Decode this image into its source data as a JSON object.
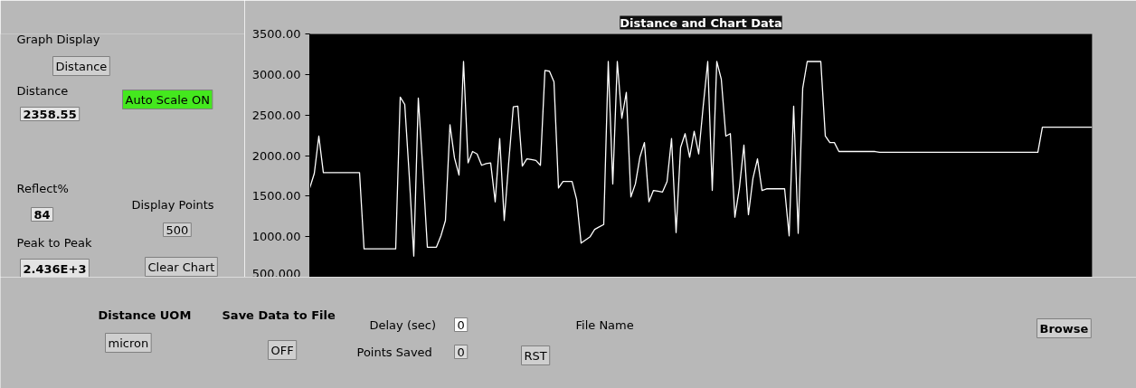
{
  "chart_data": {
    "type": "line",
    "title": "Distance and Chart Data",
    "categories": [
      null,
      null,
      null,
      null,
      null,
      null,
      null,
      null,
      null,
      null,
      null,
      null,
      null,
      null,
      null,
      null,
      null,
      null,
      null,
      null,
      null,
      null,
      null,
      null,
      null,
      null,
      null,
      null,
      null,
      null,
      null,
      null,
      null,
      null,
      null,
      null,
      null,
      null,
      null,
      null,
      null,
      null,
      null,
      null,
      null,
      null,
      null,
      null,
      null,
      null,
      null,
      null,
      null,
      null,
      null,
      null,
      null,
      null,
      null,
      null,
      null,
      null,
      null,
      null,
      null,
      null,
      null,
      null,
      null,
      null,
      null,
      null,
      null,
      null,
      null,
      null,
      null,
      null,
      null,
      null,
      null,
      null,
      null,
      null,
      null,
      null,
      null,
      null,
      null,
      null,
      null,
      null,
      null,
      null,
      null,
      null,
      null,
      null,
      null,
      null,
      null,
      null,
      null,
      null,
      null,
      null,
      null,
      null,
      null,
      null,
      null,
      null,
      null,
      null,
      null,
      null,
      null,
      null,
      null,
      null,
      null,
      null,
      null,
      null,
      null,
      null,
      null,
      null,
      null,
      null,
      null,
      null,
      null,
      null,
      null,
      null,
      null,
      null,
      null,
      null,
      null,
      null,
      null,
      null,
      null,
      null,
      null,
      null,
      null,
      null,
      null,
      null,
      null,
      null,
      null,
      null,
      null,
      null,
      null,
      null,
      null,
      null,
      null,
      null,
      null,
      null,
      null,
      null,
      null,
      null,
      null,
      null,
      null,
      null
    ],
    "values": [
      1600,
      1780,
      2240,
      1790,
      1790,
      1790,
      1790,
      1790,
      1790,
      1790,
      1790,
      1790,
      850,
      850,
      850,
      850,
      850,
      850,
      850,
      850,
      2720,
      2630,
      1750,
      760,
      2710,
      1830,
      870,
      870,
      870,
      1010,
      1200,
      2380,
      1970,
      1760,
      3160,
      1910,
      2050,
      2020,
      1880,
      1900,
      1910,
      1430,
      2210,
      1200,
      1920,
      2600,
      2610,
      1870,
      1960,
      1950,
      1940,
      1880,
      3050,
      3040,
      2910,
      1600,
      1680,
      1680,
      1680,
      1460,
      920,
      960,
      1000,
      1090,
      1120,
      1150,
      3160,
      1650,
      3160,
      2460,
      2780,
      1490,
      1650,
      1980,
      2160,
      1430,
      1570,
      1560,
      1550,
      1680,
      2210,
      1050,
      2100,
      2270,
      1980,
      2300,
      2020,
      2610,
      3160,
      1570,
      3160,
      2940,
      2240,
      2270,
      1240,
      1600,
      2130,
      1270,
      1720,
      1960,
      1570,
      1590,
      1590,
      1590,
      1590,
      1590,
      1010,
      2610,
      1040,
      2830,
      3160,
      3160,
      3160,
      3160,
      2240,
      2160,
      2160,
      2050,
      2050,
      2050,
      2050,
      2050,
      2050,
      2050,
      2050,
      2050,
      2040,
      2040,
      2040,
      2040,
      2040,
      2040,
      2040,
      2040,
      2040,
      2040,
      2040,
      2040,
      2040,
      2040,
      2040,
      2040,
      2040,
      2040,
      2040,
      2040,
      2040,
      2040,
      2040,
      2040,
      2040,
      2040,
      2040,
      2040,
      2040,
      2040,
      2040,
      2040,
      2040,
      2040,
      2040,
      2040,
      2350,
      2350,
      2350,
      2350,
      2350,
      2350,
      2350,
      2350,
      2350,
      2350,
      2350,
      2350
    ],
    "color": "#ffffff",
    "ylim": [
      500,
      3500
    ],
    "yticks": [
      {
        "value": 3500,
        "label": "3500.00"
      },
      {
        "value": 3000,
        "label": "3000.00"
      },
      {
        "value": 2500,
        "label": "2500.00"
      },
      {
        "value": 2000,
        "label": "2000.00"
      },
      {
        "value": 1500,
        "label": "1500.00"
      },
      {
        "value": 1000,
        "label": "1000.00"
      },
      {
        "value": 500,
        "label": "500.000"
      }
    ],
    "tick_labels": "y",
    "grid": false,
    "annotations": [
      "Graph Display",
      "Distance",
      "Distance",
      "2358.55",
      "Auto Scale ON",
      "Reflect%",
      "84",
      "Display Points",
      "500",
      "Peak to Peak",
      "2.436E+3",
      "Clear Chart",
      "Distance UOM",
      "micron",
      "Save Data to File",
      "OFF",
      "Delay (sec)",
      "0",
      "Points Saved",
      "0",
      "RST",
      "File Name",
      "Browse"
    ]
  }
}
